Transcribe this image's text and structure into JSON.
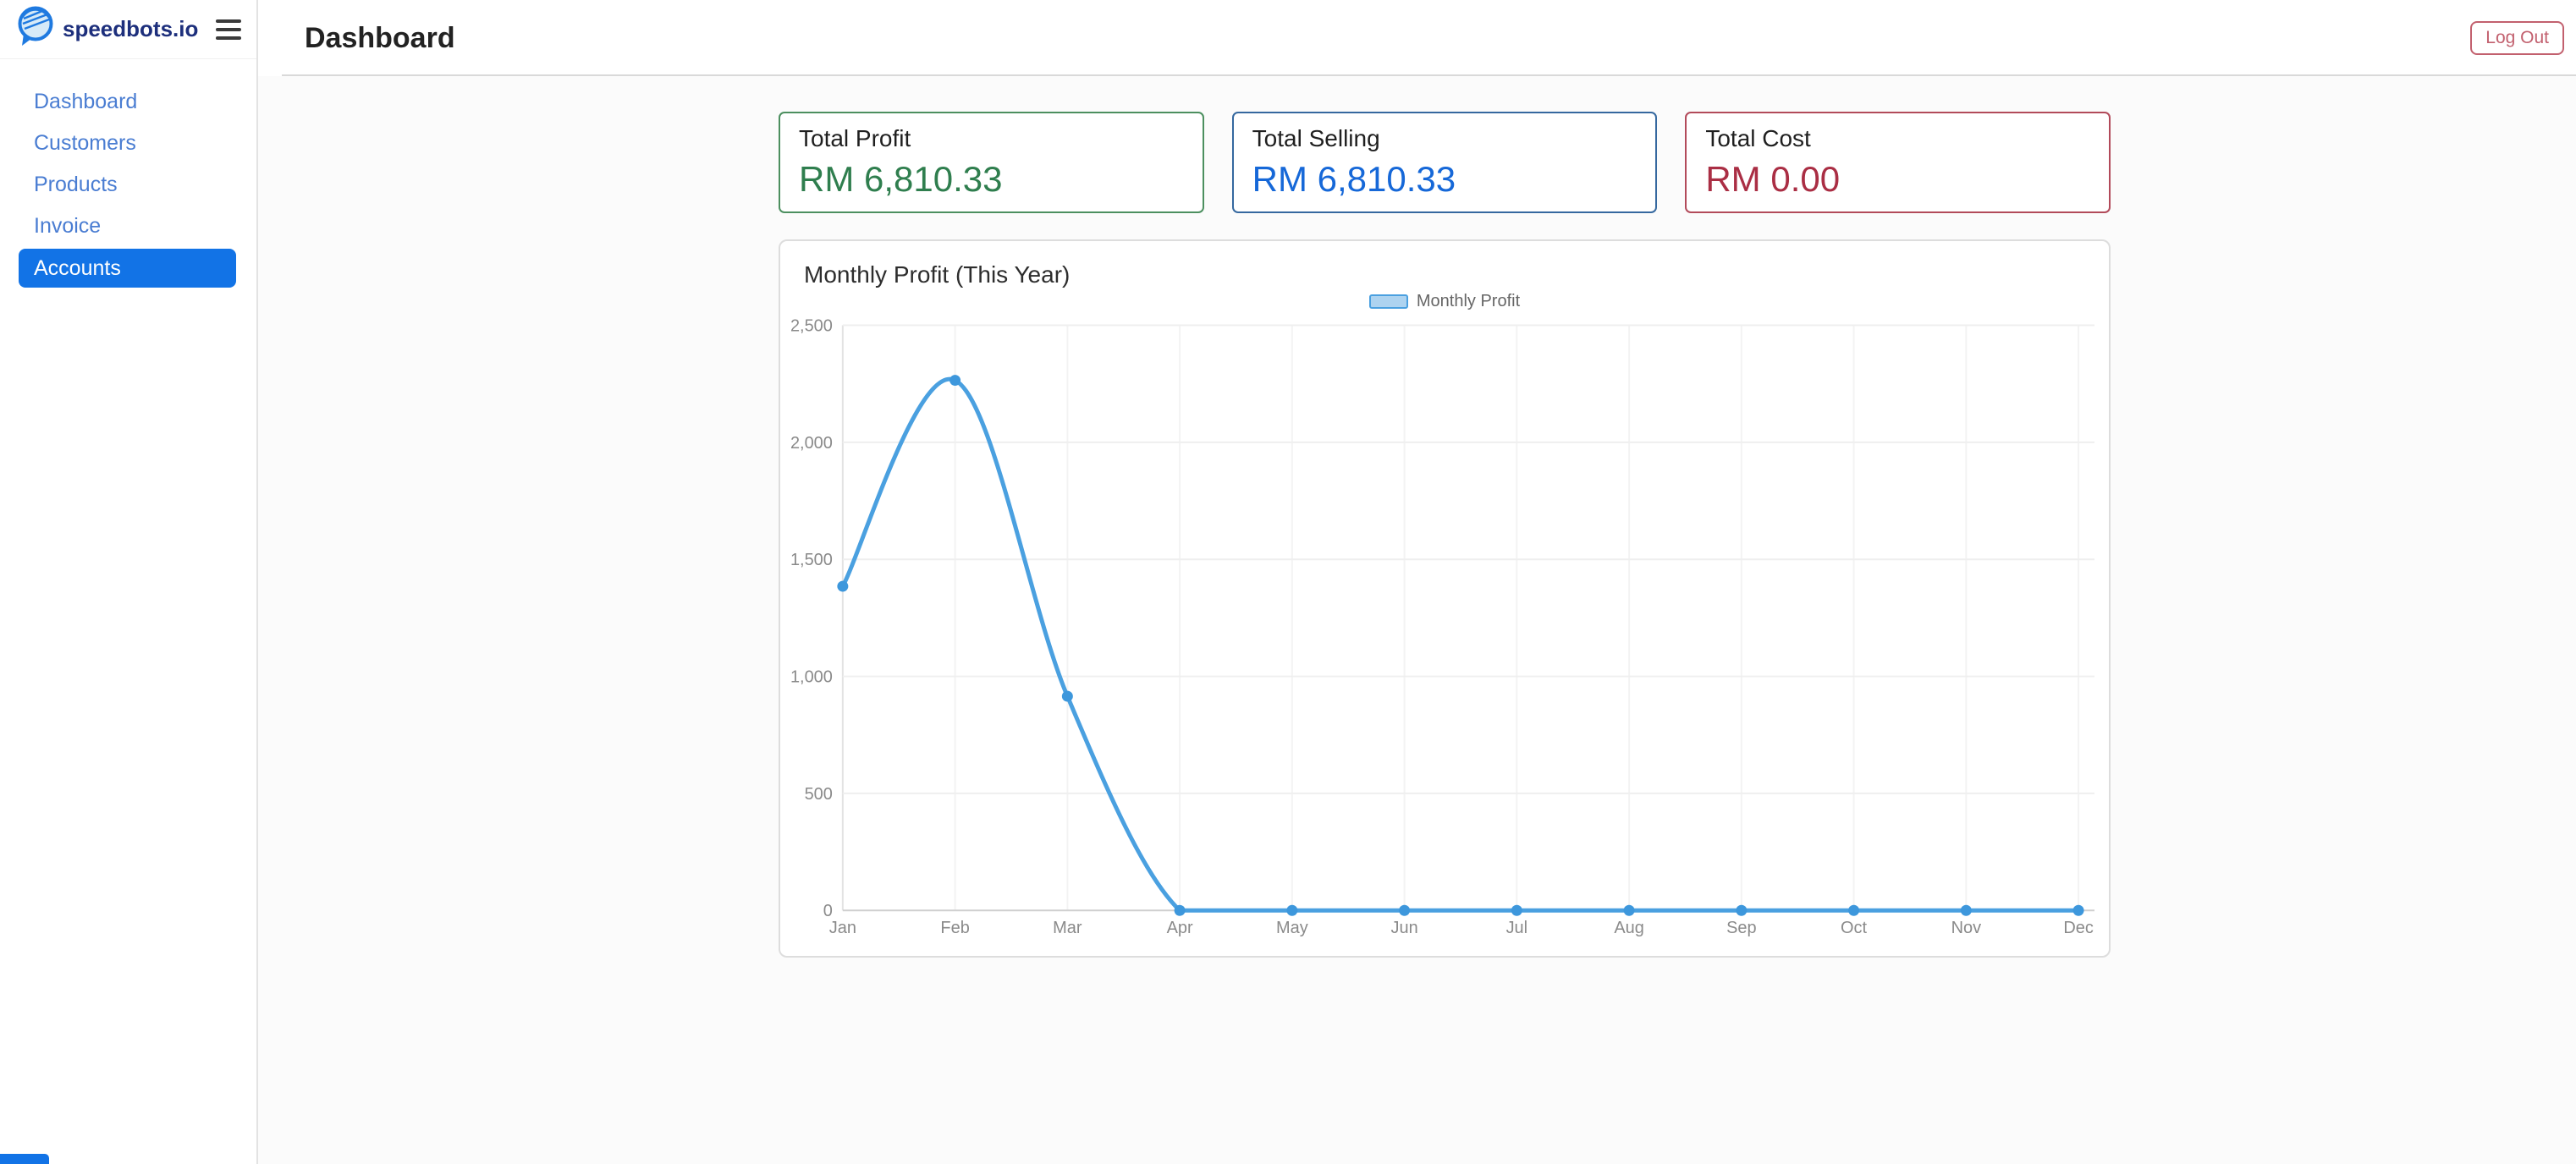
{
  "theme": {
    "active_blue": "#1273e6",
    "nav_link_color": "#4a7dd2",
    "brand_color": "#1d2f7c",
    "logout_color": "#c2606e"
  },
  "brand": {
    "name": "speedbots.io"
  },
  "sidebar": {
    "items": [
      {
        "label": "Dashboard",
        "active": false
      },
      {
        "label": "Customers",
        "active": false
      },
      {
        "label": "Products",
        "active": false
      },
      {
        "label": "Invoice",
        "active": false
      },
      {
        "label": "Accounts",
        "active": true
      }
    ]
  },
  "header": {
    "title": "Dashboard",
    "logout_label": "Log Out"
  },
  "stats": {
    "cards": [
      {
        "label": "Total Profit",
        "value": "RM 6,810.33",
        "value_color": "#2f7e4e",
        "border_color": "#4c8f5f"
      },
      {
        "label": "Total Selling",
        "value": "RM 6,810.33",
        "value_color": "#1668d8",
        "border_color": "#35689f"
      },
      {
        "label": "Total Cost",
        "value": "RM 0.00",
        "value_color": "#aa2e44",
        "border_color": "#b24a5a"
      }
    ]
  },
  "chart_data": {
    "type": "line",
    "title": "Monthly Profit (This Year)",
    "legend": [
      "Monthly Profit"
    ],
    "legend_position": "top",
    "categories": [
      "Jan",
      "Feb",
      "Mar",
      "Apr",
      "May",
      "Jun",
      "Jul",
      "Aug",
      "Sep",
      "Oct",
      "Nov",
      "Dec"
    ],
    "series": [
      {
        "name": "Monthly Profit",
        "values": [
          1385,
          2265,
          915,
          0,
          0,
          0,
          0,
          0,
          0,
          0,
          0,
          0
        ]
      }
    ],
    "ylim": [
      0,
      2500
    ],
    "ytick_step": 500,
    "ytick_labels": [
      "2,500",
      "2,000",
      "1,500",
      "1,000",
      "500",
      "0"
    ],
    "grid": true,
    "line_color": "#4aa0e0",
    "point_color": "#3d97dc",
    "legend_box_fill": "#add3f0",
    "legend_box_border": "#4aa0e0"
  }
}
